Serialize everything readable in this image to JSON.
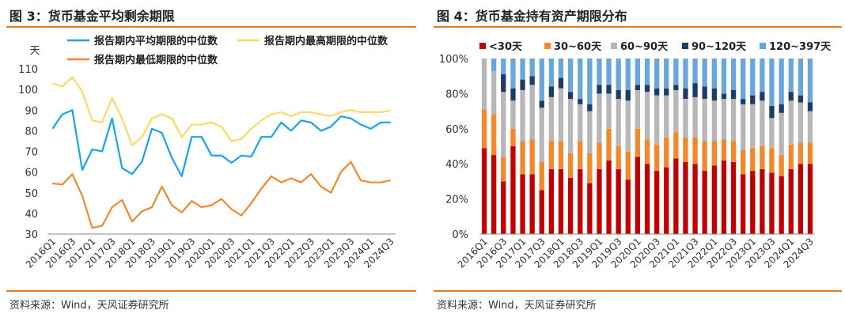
{
  "left_panel": {
    "title": "图 3：货币基金平均剩余期限",
    "source": "资料来源：Wind，天风证券研究所"
  },
  "right_panel": {
    "title": "图 4：货币基金持有资产期限分布",
    "source": "资料来源：Wind，天风证券研究所"
  },
  "chart_data": [
    {
      "type": "line",
      "ylabel": "天",
      "ylim": [
        30,
        110
      ],
      "yticks": [
        30,
        40,
        50,
        60,
        70,
        80,
        90,
        100,
        110
      ],
      "grid": false,
      "legend_position": "top",
      "x": [
        "2016Q1",
        "2016Q2",
        "2016Q3",
        "2016Q4",
        "2017Q1",
        "2017Q2",
        "2017Q3",
        "2017Q4",
        "2018Q1",
        "2018Q2",
        "2018Q3",
        "2018Q4",
        "2019Q1",
        "2019Q2",
        "2019Q3",
        "2019Q4",
        "2020Q1",
        "2020Q2",
        "2020Q3",
        "2020Q4",
        "2021Q1",
        "2021Q2",
        "2021Q3",
        "2021Q4",
        "2022Q1",
        "2022Q2",
        "2022Q3",
        "2022Q4",
        "2023Q1",
        "2023Q2",
        "2023Q3",
        "2023Q4",
        "2024Q1",
        "2024Q2",
        "2024Q3"
      ],
      "xtick_labels": [
        "2016Q1",
        "2016Q3",
        "2017Q1",
        "2017Q3",
        "2018Q1",
        "2018Q3",
        "2019Q1",
        "2019Q3",
        "2020Q1",
        "2020Q3",
        "2021Q1",
        "2021Q3",
        "2022Q1",
        "2022Q3",
        "2023Q1",
        "2023Q3",
        "2024Q1",
        "2024Q3"
      ],
      "series": [
        {
          "name": "报告期内平均期限的中位数",
          "color": "#1aa3e8",
          "values": [
            81,
            88,
            90,
            61,
            71,
            70,
            86,
            62,
            59,
            65,
            81,
            79,
            67,
            58,
            77,
            77,
            68,
            68,
            64.5,
            68,
            67.5,
            77,
            77,
            84,
            80,
            85,
            84,
            80,
            82,
            87,
            86,
            83,
            81,
            84,
            84
          ]
        },
        {
          "name": "报告期内最高期限的中位数",
          "color": "#ffd966",
          "values": [
            103,
            101.5,
            106,
            99,
            85,
            84,
            96,
            86,
            73,
            77,
            86,
            88,
            86,
            77,
            83,
            83,
            84,
            82,
            75,
            76,
            81,
            85,
            88,
            89,
            87,
            89,
            89,
            88,
            87,
            89,
            90,
            89,
            89,
            89,
            90
          ]
        },
        {
          "name": "报告期内最低期限的中位数",
          "color": "#f0892e",
          "values": [
            54.5,
            54,
            59,
            48.5,
            33,
            34,
            43,
            46.5,
            36,
            41,
            43,
            53,
            44,
            40.5,
            46,
            43,
            44,
            47,
            42,
            39,
            45,
            52,
            58,
            55,
            57,
            55,
            59,
            53,
            50,
            60,
            65,
            56,
            55,
            55,
            56
          ]
        }
      ]
    },
    {
      "type": "bar",
      "stacked": true,
      "ylim": [
        0,
        100
      ],
      "yticks": [
        "0%",
        "20%",
        "40%",
        "60%",
        "80%",
        "100%"
      ],
      "grid": false,
      "legend_position": "top",
      "categories": [
        "2016Q1",
        "2016Q2",
        "2016Q3",
        "2016Q4",
        "2017Q1",
        "2017Q2",
        "2017Q3",
        "2017Q4",
        "2018Q1",
        "2018Q2",
        "2018Q3",
        "2018Q4",
        "2019Q1",
        "2019Q2",
        "2019Q3",
        "2019Q4",
        "2020Q1",
        "2020Q2",
        "2020Q3",
        "2020Q4",
        "2021Q1",
        "2021Q2",
        "2021Q3",
        "2021Q4",
        "2022Q1",
        "2022Q2",
        "2022Q3",
        "2022Q4",
        "2023Q1",
        "2023Q2",
        "2023Q3",
        "2023Q4",
        "2024Q1",
        "2024Q2",
        "2024Q3"
      ],
      "xtick_labels": [
        "2016Q1",
        "2016Q3",
        "2017Q1",
        "2017Q3",
        "2018Q1",
        "2018Q3",
        "2019Q1",
        "2019Q3",
        "2020Q1",
        "2020Q3",
        "2021Q1",
        "2021Q3",
        "2022Q1",
        "2022Q3",
        "2023Q1",
        "2023Q3",
        "2024Q1",
        "2024Q3"
      ],
      "series": [
        {
          "name": "<30天",
          "color": "#c00000",
          "values": [
            49,
            45,
            30,
            50,
            34,
            34,
            25,
            37,
            37,
            32,
            37,
            29,
            37,
            42,
            37,
            31,
            44,
            40,
            36,
            38,
            43,
            41,
            40,
            36,
            39,
            42,
            41,
            34,
            36,
            37,
            35,
            33,
            37,
            40,
            40
          ]
        },
        {
          "name": "30~60天",
          "color": "#f0892e",
          "values": [
            22,
            23,
            14,
            10,
            19,
            20,
            16,
            16,
            16,
            14,
            16,
            17,
            15,
            18,
            13,
            16,
            16,
            14,
            15,
            17,
            15,
            14,
            15,
            17,
            14,
            12,
            12,
            14,
            13,
            13,
            14,
            12,
            14,
            12,
            12
          ]
        },
        {
          "name": "60~90天",
          "color": "#b7b7b7",
          "values": [
            29,
            25,
            37,
            16,
            29,
            31,
            31,
            25,
            30,
            31,
            21,
            24,
            28,
            20,
            27,
            29,
            22,
            27,
            28,
            24,
            24,
            22,
            23,
            24,
            23,
            23,
            24,
            26,
            25,
            26,
            17,
            24,
            25,
            23,
            18
          ]
        },
        {
          "name": "90~120天",
          "color": "#1f3c68",
          "values": [
            0,
            0,
            10,
            7,
            6,
            5,
            4,
            6,
            6,
            4,
            3,
            4,
            5,
            5,
            5,
            6,
            3,
            4,
            4,
            4,
            3,
            6,
            8,
            7,
            7,
            3,
            5,
            3,
            5,
            5,
            7,
            5,
            5,
            4,
            5
          ]
        },
        {
          "name": "120~397天",
          "color": "#6aa7d8",
          "values": [
            0,
            7,
            9,
            17,
            12,
            10,
            24,
            16,
            11,
            19,
            23,
            26,
            15,
            15,
            18,
            18,
            15,
            15,
            17,
            17,
            15,
            17,
            14,
            16,
            17,
            20,
            18,
            23,
            21,
            19,
            27,
            26,
            19,
            21,
            25
          ]
        }
      ]
    }
  ]
}
